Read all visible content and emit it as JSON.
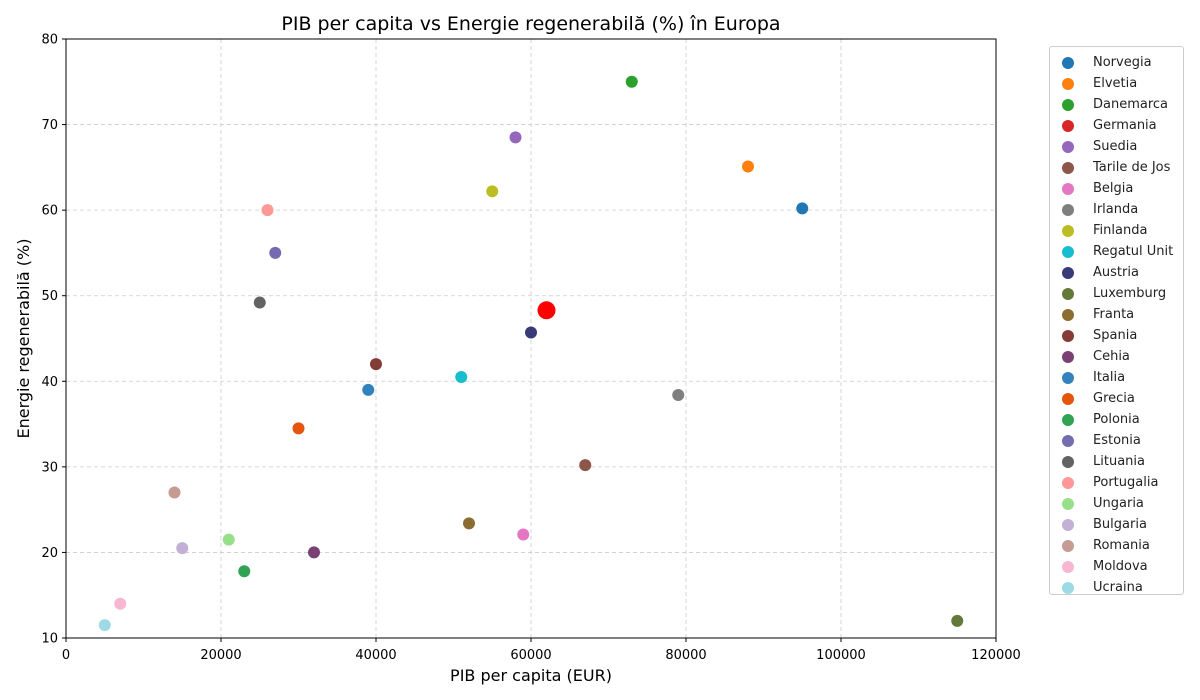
{
  "chart_data": {
    "type": "scatter",
    "title": "PIB per capita vs Energie regenerabilă (%) în Europa",
    "xlabel": "PIB per capita (EUR)",
    "ylabel": "Energie regenerabilă (%)",
    "xlim": [
      0,
      120000
    ],
    "ylim": [
      10,
      80
    ],
    "xticks": [
      0,
      20000,
      40000,
      60000,
      80000,
      100000,
      120000
    ],
    "yticks": [
      10,
      20,
      30,
      40,
      50,
      60,
      70,
      80
    ],
    "grid": true,
    "legend_position": "outside right",
    "points": [
      {
        "name": "Norvegia",
        "x": 95000,
        "y": 60.2,
        "color": "#1f77b4"
      },
      {
        "name": "Elvetia",
        "x": 88000,
        "y": 65.1,
        "color": "#ff7f0e"
      },
      {
        "name": "Danemarca",
        "x": 73000,
        "y": 75.0,
        "color": "#2ca02c"
      },
      {
        "name": "Germania",
        "x": 62000,
        "y": 48.3,
        "color": "#d62728"
      },
      {
        "name": "Suedia",
        "x": 58000,
        "y": 68.5,
        "color": "#9467bd"
      },
      {
        "name": "Tarile de Jos",
        "x": 67000,
        "y": 30.2,
        "color": "#8c564b"
      },
      {
        "name": "Belgia",
        "x": 59000,
        "y": 22.1,
        "color": "#e377c2"
      },
      {
        "name": "Irlanda",
        "x": 79000,
        "y": 38.4,
        "color": "#7f7f7f"
      },
      {
        "name": "Finlanda",
        "x": 55000,
        "y": 62.2,
        "color": "#bcbd22"
      },
      {
        "name": "Regatul Unit",
        "x": 51000,
        "y": 40.5,
        "color": "#17becf"
      },
      {
        "name": "Austria",
        "x": 60000,
        "y": 45.7,
        "color": "#393b79"
      },
      {
        "name": "Luxemburg",
        "x": 115000,
        "y": 12.0,
        "color": "#637939"
      },
      {
        "name": "Franta",
        "x": 52000,
        "y": 23.4,
        "color": "#8c6d31"
      },
      {
        "name": "Spania",
        "x": 40000,
        "y": 42.0,
        "color": "#843c39"
      },
      {
        "name": "Cehia",
        "x": 32000,
        "y": 20.0,
        "color": "#7b4173"
      },
      {
        "name": "Italia",
        "x": 39000,
        "y": 39.0,
        "color": "#3182bd"
      },
      {
        "name": "Grecia",
        "x": 30000,
        "y": 34.5,
        "color": "#e6550d"
      },
      {
        "name": "Polonia",
        "x": 23000,
        "y": 17.8,
        "color": "#31a354"
      },
      {
        "name": "Estonia",
        "x": 27000,
        "y": 55.0,
        "color": "#756bb1"
      },
      {
        "name": "Lituania",
        "x": 25000,
        "y": 49.2,
        "color": "#636363"
      },
      {
        "name": "Portugalia",
        "x": 26000,
        "y": 60.0,
        "color": "#ff9896"
      },
      {
        "name": "Ungaria",
        "x": 21000,
        "y": 21.5,
        "color": "#98df8a"
      },
      {
        "name": "Bulgaria",
        "x": 15000,
        "y": 20.5,
        "color": "#c5b0d5"
      },
      {
        "name": "Romania",
        "x": 14000,
        "y": 27.0,
        "color": "#c49c94"
      },
      {
        "name": "Moldova",
        "x": 7000,
        "y": 14.0,
        "color": "#f7b6d2"
      },
      {
        "name": "Ucraina",
        "x": 5000,
        "y": 11.5,
        "color": "#9edae5"
      }
    ],
    "highlight": {
      "x": 62000,
      "y": 48.3,
      "color": "#ff0000"
    }
  }
}
